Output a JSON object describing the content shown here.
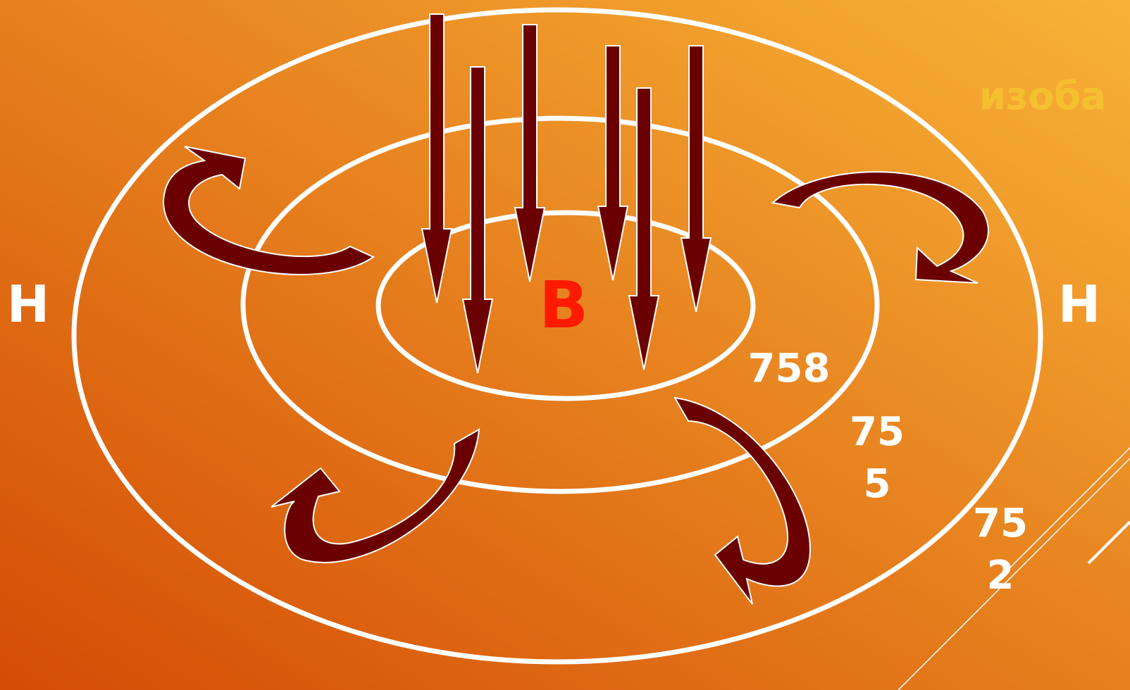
{
  "caption": "изоба",
  "labels": {
    "low_left": "Н",
    "high": "В",
    "low_right": "Н"
  },
  "isobars": [
    [
      "758"
    ],
    [
      "75",
      "5"
    ],
    [
      "75",
      "2"
    ]
  ]
}
